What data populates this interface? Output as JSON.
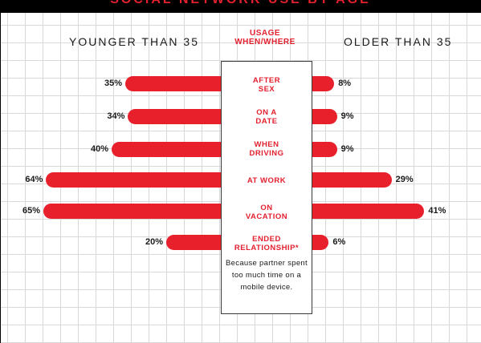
{
  "title": "SOCIAL NETWORK USE BY AGE",
  "header": {
    "left": "YOUNGER THAN 35",
    "center": [
      "USAGE",
      "WHEN/WHERE"
    ],
    "right": "OLDER THAN 35"
  },
  "footnote": "Because partner spent too much time on a mobile device.",
  "colors": {
    "bar": "#e8202c",
    "label": "#e3202f"
  },
  "chart_data": {
    "type": "bar",
    "orientation": "horizontal-butterfly",
    "categories": [
      [
        "AFTER",
        "SEX"
      ],
      [
        "ON A",
        "DATE"
      ],
      [
        "WHEN",
        "DRIVING"
      ],
      [
        "AT WORK"
      ],
      [
        "ON",
        "VACATION"
      ],
      [
        "ENDED",
        "RELATIONSHIP*"
      ]
    ],
    "series": [
      {
        "name": "YOUNGER THAN 35",
        "values": [
          35,
          34,
          40,
          64,
          65,
          20
        ],
        "labels": [
          "35%",
          "34%",
          "40%",
          "64%",
          "65%",
          "20%"
        ]
      },
      {
        "name": "OLDER THAN 35",
        "values": [
          8,
          9,
          9,
          29,
          41,
          6
        ],
        "labels": [
          "8%",
          "9%",
          "9%",
          "29%",
          "41%",
          "6%"
        ]
      }
    ],
    "unit": "%",
    "grid": true
  }
}
